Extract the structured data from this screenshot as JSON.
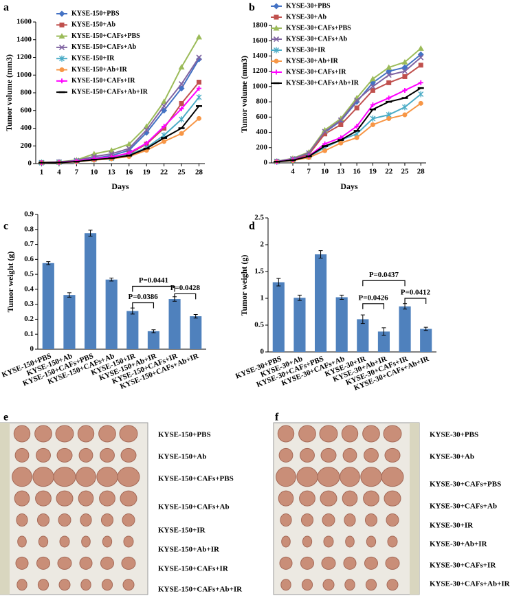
{
  "chart_data": [
    {
      "type": "line",
      "panel": "a",
      "x_label": "Days",
      "y_label": "Tumor volume (mm3)",
      "x": [
        1,
        4,
        7,
        10,
        13,
        16,
        19,
        22,
        25,
        28
      ],
      "xlim": [
        0,
        29
      ],
      "xticks": [
        1,
        4,
        7,
        10,
        13,
        16,
        19,
        22,
        25,
        28
      ],
      "ylim": [
        0,
        1600
      ],
      "yticks": [
        0,
        200,
        400,
        600,
        800,
        1000,
        1200,
        1400,
        1600
      ],
      "series": [
        {
          "name": "KYSE-150+PBS",
          "color": "#4472c4",
          "marker": "diamond",
          "values": [
            10,
            15,
            30,
            60,
            90,
            150,
            350,
            600,
            850,
            1180
          ]
        },
        {
          "name": "KYSE-150+Ab",
          "color": "#c0504d",
          "marker": "square",
          "values": [
            10,
            15,
            25,
            50,
            70,
            110,
            220,
            400,
            680,
            920
          ]
        },
        {
          "name": "KYSE-150+CAFs+PBS",
          "color": "#9bbb59",
          "marker": "triangle",
          "values": [
            15,
            20,
            40,
            110,
            150,
            220,
            420,
            700,
            1090,
            1430
          ]
        },
        {
          "name": "KYSE-150+CAFs+Ab",
          "color": "#8064a2",
          "marker": "cross",
          "values": [
            10,
            18,
            35,
            80,
            110,
            170,
            380,
            650,
            900,
            1200
          ]
        },
        {
          "name": "KYSE-150+IR",
          "color": "#4bacc6",
          "marker": "star",
          "values": [
            10,
            15,
            25,
            45,
            60,
            100,
            180,
            320,
            500,
            750
          ]
        },
        {
          "name": "KYSE-150+Ab+IR",
          "color": "#f79646",
          "marker": "circle",
          "values": [
            10,
            12,
            20,
            40,
            55,
            80,
            150,
            250,
            340,
            510
          ]
        },
        {
          "name": "KYSE-150+CAFs+IR",
          "color": "#ff00ff",
          "marker": "plus",
          "values": [
            10,
            15,
            28,
            55,
            75,
            120,
            230,
            420,
            620,
            850
          ]
        },
        {
          "name": "KYSE-150+CAFs+Ab+IR",
          "color": "#000000",
          "marker": "dash",
          "values": [
            10,
            12,
            22,
            45,
            60,
            90,
            170,
            290,
            400,
            650
          ]
        }
      ]
    },
    {
      "type": "line",
      "panel": "b",
      "x_label": "Days",
      "y_label": "Tumor volume (mm3)",
      "x": [
        1,
        4,
        7,
        10,
        13,
        16,
        19,
        22,
        25,
        28
      ],
      "xlim": [
        0,
        29
      ],
      "xticks": [
        4,
        7,
        10,
        13,
        16,
        19,
        22,
        25,
        28
      ],
      "ylim": [
        0,
        1800
      ],
      "yticks": [
        0,
        200,
        400,
        600,
        800,
        1000,
        1200,
        1400,
        1600,
        1800
      ],
      "series": [
        {
          "name": "KYSE-30+PBS",
          "color": "#4472c4",
          "marker": "diamond",
          "values": [
            20,
            50,
            120,
            400,
            550,
            800,
            1050,
            1200,
            1250,
            1420
          ]
        },
        {
          "name": "KYSE-30+Ab",
          "color": "#c0504d",
          "marker": "square",
          "values": [
            20,
            45,
            110,
            380,
            500,
            720,
            950,
            1050,
            1130,
            1280
          ]
        },
        {
          "name": "KYSE-30+CAFs+PBS",
          "color": "#9bbb59",
          "marker": "triangle",
          "values": [
            20,
            60,
            140,
            430,
            580,
            850,
            1100,
            1250,
            1320,
            1500
          ]
        },
        {
          "name": "KYSE-30+CAFs+Ab",
          "color": "#8064a2",
          "marker": "cross",
          "values": [
            20,
            55,
            130,
            410,
            560,
            820,
            1000,
            1150,
            1200,
            1380
          ]
        },
        {
          "name": "KYSE-30+IR",
          "color": "#4bacc6",
          "marker": "star",
          "values": [
            15,
            35,
            80,
            200,
            300,
            380,
            580,
            630,
            730,
            900
          ]
        },
        {
          "name": "KYSE-30+Ab+IR",
          "color": "#f79646",
          "marker": "circle",
          "values": [
            15,
            30,
            70,
            160,
            260,
            330,
            500,
            580,
            630,
            780
          ]
        },
        {
          "name": "KYSE-30+CAFs+IR",
          "color": "#ff00ff",
          "marker": "plus",
          "values": [
            15,
            40,
            90,
            250,
            330,
            480,
            760,
            850,
            950,
            1050
          ]
        },
        {
          "name": "KYSE-30+CAFs+Ab+IR",
          "color": "#000000",
          "marker": "dash",
          "values": [
            15,
            35,
            85,
            220,
            300,
            420,
            700,
            800,
            850,
            980
          ]
        }
      ]
    },
    {
      "type": "bar",
      "panel": "c",
      "y_label": "Tumor weight (g)",
      "color": "#4f81bd",
      "categories": [
        "KYSE-150+PBS",
        "KYSE-150+Ab",
        "KYSE-150+CAFs+PBS",
        "KYSE-150+CAFs+Ab",
        "KYSE-150+IR",
        "KYSE-150+Ab+IR",
        "KYSE-150+CAFs+IR",
        "KYSE-150+CAFs+Ab+IR"
      ],
      "values": [
        0.575,
        0.362,
        0.775,
        0.465,
        0.255,
        0.12,
        0.335,
        0.22
      ],
      "errors": [
        0.01,
        0.015,
        0.02,
        0.01,
        0.02,
        0.01,
        0.015,
        0.012
      ],
      "ylim": [
        0,
        0.9
      ],
      "yticks": [
        0,
        0.1,
        0.2,
        0.3,
        0.4,
        0.5,
        0.6,
        0.7,
        0.8,
        0.9
      ],
      "annotations": [
        "P=0.0441",
        "P=0.0386",
        "P=0.0428"
      ]
    },
    {
      "type": "bar",
      "panel": "d",
      "y_label": "Tumor weight (g)",
      "color": "#4f81bd",
      "categories": [
        "KYSE-30+PBS",
        "KYSE-30+Ab",
        "KYSE-30+CAFs+PBS",
        "KYSE-30+CAFs+Ab",
        "KYSE-30+IR",
        "KYSE-30+Ab+IR",
        "KYSE-30+CAFs+IR",
        "KYSE-30+CAFs+Ab+IR"
      ],
      "values": [
        1.3,
        1.01,
        1.82,
        1.02,
        0.61,
        0.38,
        0.85,
        0.43
      ],
      "errors": [
        0.07,
        0.05,
        0.07,
        0.04,
        0.08,
        0.07,
        0.05,
        0.03
      ],
      "ylim": [
        0,
        2.5
      ],
      "yticks": [
        0,
        0.5,
        1,
        1.5,
        2,
        2.5
      ],
      "annotations": [
        "P=0.0437",
        "P=0.0426",
        "P=0.0412"
      ]
    }
  ],
  "photo_panels": [
    {
      "panel": "e",
      "labels": [
        "KYSE-150+PBS",
        "KYSE-150+Ab",
        "KYSE-150+CAFs+PBS",
        "KYSE-150+CAFs+Ab",
        "KYSE-150+IR",
        "KYSE-150+Ab+IR",
        "KYSE-150+CAFs+IR",
        "KYSE-150+CAFs+Ab+IR"
      ]
    },
    {
      "panel": "f",
      "labels": [
        "KYSE-30+PBS",
        "KYSE-30+Ab",
        "KYSE-30+CAFs+PBS",
        "KYSE-30+CAFs+Ab",
        "KYSE-30+IR",
        "KYSE-30+Ab+IR",
        "KYSE-30+CAFs+IR",
        "KYSE-30+CAFs+Ab+IR"
      ]
    }
  ]
}
